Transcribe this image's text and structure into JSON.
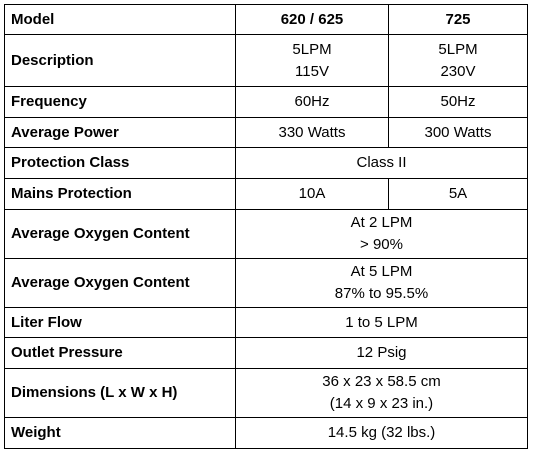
{
  "header": {
    "model_label": "Model",
    "col1": "620 / 625",
    "col2": "725"
  },
  "rows": {
    "description": {
      "label": "Description",
      "col1_line1": "5LPM",
      "col1_line2": "115V",
      "col2_line1": "5LPM",
      "col2_line2": "230V"
    },
    "frequency": {
      "label": "Frequency",
      "col1": "60Hz",
      "col2": "50Hz"
    },
    "average_power": {
      "label": "Average Power",
      "col1": "330 Watts",
      "col2": "300 Watts"
    },
    "protection_class": {
      "label": "Protection Class",
      "value": "Class II"
    },
    "mains_protection": {
      "label": "Mains Protection",
      "col1": "10A",
      "col2": "5A"
    },
    "oxygen_2lpm": {
      "label": "Average Oxygen Content",
      "line1": "At 2 LPM",
      "line2": "> 90%"
    },
    "oxygen_5lpm": {
      "label": "Average Oxygen Content",
      "line1": "At 5 LPM",
      "line2": "87% to 95.5%"
    },
    "liter_flow": {
      "label": "Liter Flow",
      "value": "1 to 5 LPM"
    },
    "outlet_pressure": {
      "label": "Outlet Pressure",
      "value": "12 Psig"
    },
    "dimensions": {
      "label": "Dimensions (L x W x H)",
      "line1": "36 x 23 x 58.5 cm",
      "line2": "(14 x 9 x 23 in.)"
    },
    "weight": {
      "label": "Weight",
      "value": "14.5 kg (32 lbs.)"
    }
  }
}
